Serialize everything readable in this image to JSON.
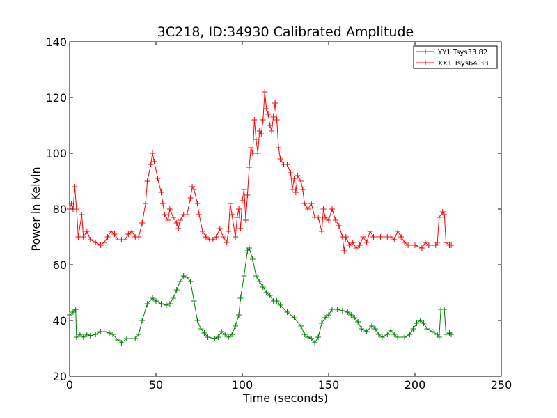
{
  "chart_data": {
    "type": "line",
    "title": "3C218, ID:34930 Calibrated Amplitude",
    "xlabel": "Time (seconds)",
    "ylabel": "Power in Kelvin",
    "xlim": [
      0,
      250
    ],
    "ylim": [
      20,
      140
    ],
    "xticks": [
      0,
      50,
      100,
      150,
      200,
      250
    ],
    "yticks": [
      20,
      40,
      60,
      80,
      100,
      120,
      140
    ],
    "grid": false,
    "legend_position": "top-right",
    "marker": "plus",
    "series": [
      {
        "name": "YY1 Tsys33.82",
        "color": "#008000",
        "points": [
          [
            0,
            42
          ],
          [
            2,
            43
          ],
          [
            3.5,
            44
          ],
          [
            4,
            34
          ],
          [
            6,
            35
          ],
          [
            8,
            34
          ],
          [
            10,
            35
          ],
          [
            12,
            34.5
          ],
          [
            15,
            35
          ],
          [
            18,
            36
          ],
          [
            20,
            36
          ],
          [
            23,
            35.5
          ],
          [
            25,
            35
          ],
          [
            28,
            33
          ],
          [
            30,
            32
          ],
          [
            33,
            33.5
          ],
          [
            38,
            33.5
          ],
          [
            40,
            35
          ],
          [
            42,
            40
          ],
          [
            45,
            46
          ],
          [
            48,
            48
          ],
          [
            50,
            47
          ],
          [
            53,
            46
          ],
          [
            56,
            45.5
          ],
          [
            58,
            46
          ],
          [
            60,
            48
          ],
          [
            62,
            51
          ],
          [
            64,
            54
          ],
          [
            66,
            56
          ],
          [
            68,
            55.5
          ],
          [
            70,
            54
          ],
          [
            72,
            47
          ],
          [
            74,
            40
          ],
          [
            76,
            37
          ],
          [
            78,
            35.5
          ],
          [
            80,
            34
          ],
          [
            84,
            33.5
          ],
          [
            86,
            34
          ],
          [
            88,
            36
          ],
          [
            90,
            35
          ],
          [
            92,
            34
          ],
          [
            94,
            35
          ],
          [
            96,
            38
          ],
          [
            98,
            42
          ],
          [
            99,
            48
          ],
          [
            101,
            56
          ],
          [
            103,
            65
          ],
          [
            104,
            66
          ],
          [
            106,
            62
          ],
          [
            108,
            56
          ],
          [
            110,
            54
          ],
          [
            112,
            52
          ],
          [
            114,
            50
          ],
          [
            116,
            49
          ],
          [
            118,
            47
          ],
          [
            120,
            47
          ],
          [
            122,
            45.5
          ],
          [
            126,
            43
          ],
          [
            130,
            41
          ],
          [
            134,
            38
          ],
          [
            136,
            35
          ],
          [
            138,
            34
          ],
          [
            140,
            33.5
          ],
          [
            142,
            32
          ],
          [
            144,
            34
          ],
          [
            146,
            39
          ],
          [
            148,
            41
          ],
          [
            150,
            42
          ],
          [
            152,
            44
          ],
          [
            155,
            44
          ],
          [
            158,
            43.5
          ],
          [
            161,
            43
          ],
          [
            163,
            42
          ],
          [
            165,
            41
          ],
          [
            167,
            39.5
          ],
          [
            169,
            37
          ],
          [
            172,
            36
          ],
          [
            175,
            38
          ],
          [
            177,
            37
          ],
          [
            179,
            35
          ],
          [
            181,
            34
          ],
          [
            184,
            35
          ],
          [
            186,
            36.5
          ],
          [
            188,
            35
          ],
          [
            190,
            34
          ],
          [
            194,
            34
          ],
          [
            197,
            35
          ],
          [
            199,
            37
          ],
          [
            201,
            39
          ],
          [
            203,
            40
          ],
          [
            205,
            39
          ],
          [
            207,
            37
          ],
          [
            210,
            36
          ],
          [
            213,
            35
          ],
          [
            214,
            34
          ],
          [
            215,
            44
          ],
          [
            217,
            44
          ],
          [
            218,
            35
          ],
          [
            220,
            35.5
          ],
          [
            221,
            35
          ]
        ]
      },
      {
        "name": "XX1 Tsys64.33",
        "color": "#ff0000",
        "points": [
          [
            0,
            80
          ],
          [
            1,
            82
          ],
          [
            2,
            80
          ],
          [
            3,
            88
          ],
          [
            4,
            80
          ],
          [
            5,
            70
          ],
          [
            7,
            78
          ],
          [
            8,
            70
          ],
          [
            10,
            72
          ],
          [
            12,
            69
          ],
          [
            15,
            68
          ],
          [
            18,
            67
          ],
          [
            20,
            68
          ],
          [
            22,
            70
          ],
          [
            24,
            72
          ],
          [
            26,
            71
          ],
          [
            28,
            69
          ],
          [
            30,
            69
          ],
          [
            32,
            69
          ],
          [
            34,
            71
          ],
          [
            36,
            72
          ],
          [
            38,
            70
          ],
          [
            40,
            70
          ],
          [
            42,
            75
          ],
          [
            44,
            82
          ],
          [
            45,
            90
          ],
          [
            47,
            96
          ],
          [
            48,
            100
          ],
          [
            49,
            97
          ],
          [
            51,
            91
          ],
          [
            53,
            86
          ],
          [
            54,
            82
          ],
          [
            55,
            78
          ],
          [
            57,
            76
          ],
          [
            58,
            80
          ],
          [
            60,
            77
          ],
          [
            62,
            75
          ],
          [
            63,
            73
          ],
          [
            64,
            76
          ],
          [
            66,
            78
          ],
          [
            68,
            78
          ],
          [
            70,
            84
          ],
          [
            71,
            88
          ],
          [
            72,
            87
          ],
          [
            74,
            82
          ],
          [
            75,
            78
          ],
          [
            77,
            72
          ],
          [
            79,
            70
          ],
          [
            81,
            69
          ],
          [
            83,
            69
          ],
          [
            85,
            70
          ],
          [
            87,
            73
          ],
          [
            89,
            70
          ],
          [
            91,
            68
          ],
          [
            92,
            72
          ],
          [
            93,
            82
          ],
          [
            94,
            78
          ],
          [
            96,
            70
          ],
          [
            97,
            77
          ],
          [
            98,
            80
          ],
          [
            99,
            73
          ],
          [
            100,
            83
          ],
          [
            101,
            87
          ],
          [
            102,
            76
          ],
          [
            103,
            85
          ],
          [
            104,
            95
          ],
          [
            105,
            102
          ],
          [
            106,
            100
          ],
          [
            107,
            112
          ],
          [
            108,
            105
          ],
          [
            109,
            100
          ],
          [
            110,
            108
          ],
          [
            111,
            107
          ],
          [
            112,
            112
          ],
          [
            113,
            122
          ],
          [
            114,
            116
          ],
          [
            115,
            114
          ],
          [
            116,
            110
          ],
          [
            117,
            108
          ],
          [
            118,
            113
          ],
          [
            119,
            118
          ],
          [
            120,
            112
          ],
          [
            121,
            102
          ],
          [
            122,
            98
          ],
          [
            124,
            96
          ],
          [
            126,
            96
          ],
          [
            128,
            93
          ],
          [
            129,
            87
          ],
          [
            130,
            91
          ],
          [
            131,
            86
          ],
          [
            132,
            92
          ],
          [
            134,
            90
          ],
          [
            135,
            87
          ],
          [
            136,
            82
          ],
          [
            138,
            80
          ],
          [
            140,
            82
          ],
          [
            142,
            77
          ],
          [
            144,
            77
          ],
          [
            146,
            72
          ],
          [
            147,
            80
          ],
          [
            148,
            77
          ],
          [
            150,
            76
          ],
          [
            152,
            80
          ],
          [
            154,
            76
          ],
          [
            156,
            74
          ],
          [
            158,
            70
          ],
          [
            159,
            65
          ],
          [
            160,
            70
          ],
          [
            162,
            67
          ],
          [
            164,
            68
          ],
          [
            166,
            66
          ],
          [
            168,
            67
          ],
          [
            170,
            70
          ],
          [
            172,
            68
          ],
          [
            174,
            72
          ],
          [
            176,
            70
          ],
          [
            180,
            70
          ],
          [
            184,
            70
          ],
          [
            186,
            70
          ],
          [
            188,
            69
          ],
          [
            190,
            72
          ],
          [
            192,
            70
          ],
          [
            194,
            68
          ],
          [
            196,
            67
          ],
          [
            200,
            67
          ],
          [
            204,
            66
          ],
          [
            206,
            68
          ],
          [
            208,
            67
          ],
          [
            212,
            67
          ],
          [
            213,
            68
          ],
          [
            214,
            77
          ],
          [
            216,
            79
          ],
          [
            217,
            78
          ],
          [
            218,
            68
          ],
          [
            220,
            67
          ],
          [
            221,
            67
          ]
        ]
      }
    ]
  }
}
